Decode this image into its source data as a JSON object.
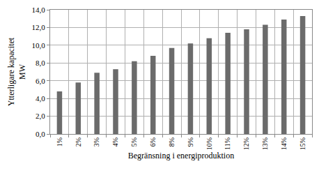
{
  "chart_data": {
    "type": "bar",
    "x_label": "Begränsning i energiproduktion",
    "y_label": "Ytterligare kapacitet\nMW",
    "categories": [
      "1%",
      "2%",
      "3%",
      "4%",
      "5%",
      "6%",
      "8%",
      "9%",
      "10%",
      "11%",
      "12%",
      "13%",
      "14%",
      "15%"
    ],
    "values": [
      4.8,
      5.8,
      6.9,
      7.3,
      8.2,
      8.8,
      9.7,
      10.2,
      10.8,
      11.4,
      11.8,
      12.3,
      12.9,
      13.3
    ],
    "color": "#6b6b6b",
    "ylim": [
      0,
      14
    ],
    "yticks": [
      {
        "value": 0,
        "label": "0,0"
      },
      {
        "value": 2,
        "label": "2,0"
      },
      {
        "value": 4,
        "label": "4,0"
      },
      {
        "value": 6,
        "label": "6,0"
      },
      {
        "value": 8,
        "label": "8,0"
      },
      {
        "value": 10,
        "label": "10,0"
      },
      {
        "value": 12,
        "label": "12,0"
      },
      {
        "value": 14,
        "label": "14,0"
      }
    ],
    "grid": true
  }
}
